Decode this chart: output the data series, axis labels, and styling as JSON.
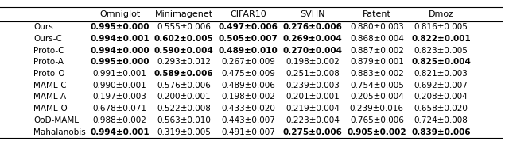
{
  "columns": [
    "Omniglot",
    "Minimagenet",
    "CIFAR10",
    "SVHN",
    "Patent",
    "Dmoz"
  ],
  "rows": [
    "Ours",
    "Ours-C",
    "Proto-C",
    "Proto-A",
    "Proto-O",
    "MAML-C",
    "MAML-A",
    "MAML-O",
    "OoD-MAML",
    "Mahalanobis"
  ],
  "data": [
    [
      "0.995±0.000",
      "0.555±0.006",
      "0.497±0.006",
      "0.276±0.006",
      "0.880±0.003",
      "0.816±0.005"
    ],
    [
      "0.994±0.001",
      "0.602±0.005",
      "0.505±0.007",
      "0.269±0.004",
      "0.868±0.004",
      "0.822±0.001"
    ],
    [
      "0.994±0.000",
      "0.590±0.004",
      "0.489±0.010",
      "0.270±0.004",
      "0.887±0.002",
      "0.823±0.005"
    ],
    [
      "0.995±0.000",
      "0.293±0.012",
      "0.267±0.009",
      "0.198±0.002",
      "0.879±0.001",
      "0.825±0.004"
    ],
    [
      "0.991±0.001",
      "0.589±0.006",
      "0.475±0.009",
      "0.251±0.008",
      "0.883±0.002",
      "0.821±0.003"
    ],
    [
      "0.990±0.001",
      "0.576±0.006",
      "0.489±0.006",
      "0.239±0.003",
      "0.754±0.005",
      "0.692±0.007"
    ],
    [
      "0.197±0.003",
      "0.200±0.001",
      "0.198±0.002",
      "0.201±0.001",
      "0.205±0.004",
      "0.208±0.004"
    ],
    [
      "0.678±0.071",
      "0.522±0.008",
      "0.433±0.020",
      "0.219±0.004",
      "0.239±0.016",
      "0.658±0.020"
    ],
    [
      "0.988±0.002",
      "0.563±0.010",
      "0.443±0.007",
      "0.223±0.004",
      "0.765±0.006",
      "0.724±0.008"
    ],
    [
      "0.994±0.001",
      "0.319±0.005",
      "0.491±0.007",
      "0.275±0.006",
      "0.905±0.002",
      "0.839±0.006"
    ]
  ],
  "bold": [
    [
      true,
      false,
      true,
      true,
      false,
      false
    ],
    [
      true,
      true,
      true,
      true,
      false,
      true
    ],
    [
      true,
      true,
      true,
      true,
      false,
      false
    ],
    [
      true,
      false,
      false,
      false,
      false,
      true
    ],
    [
      false,
      true,
      false,
      false,
      false,
      false
    ],
    [
      false,
      false,
      false,
      false,
      false,
      false
    ],
    [
      false,
      false,
      false,
      false,
      false,
      false
    ],
    [
      false,
      false,
      false,
      false,
      false,
      false
    ],
    [
      false,
      false,
      false,
      false,
      false,
      false
    ],
    [
      true,
      false,
      false,
      true,
      true,
      true
    ]
  ],
  "fontsize": 7.5,
  "header_fontsize": 8.0
}
